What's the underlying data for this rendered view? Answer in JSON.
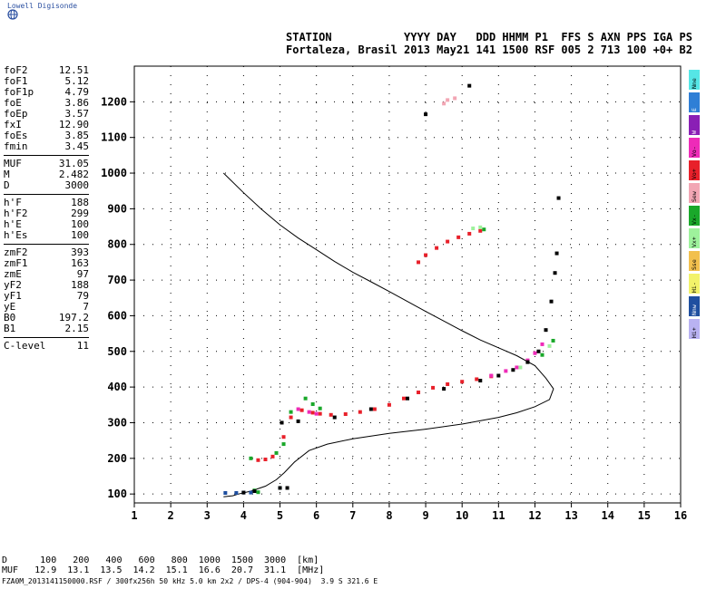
{
  "header": {
    "logo_text": "Lowell Digisonde",
    "station_line1": "STATION           YYYY DAY   DDD HHMM P1  FFS S AXN PPS IGA PS",
    "station_line2": "Fortaleza, Brasil 2013 May21 141 1500 RSF 005 2 713 100 +0+ B2"
  },
  "params": {
    "group1": [
      {
        "label": "foF2",
        "value": "12.51"
      },
      {
        "label": "foF1",
        "value": "5.12"
      },
      {
        "label": "foF1p",
        "value": "4.79"
      },
      {
        "label": "foE",
        "value": "3.86"
      },
      {
        "label": "foEp",
        "value": "3.57"
      },
      {
        "label": "fxI",
        "value": "12.90"
      },
      {
        "label": "foEs",
        "value": "3.85"
      },
      {
        "label": "fmin",
        "value": "3.45"
      }
    ],
    "group2": [
      {
        "label": "MUF",
        "value": "31.05"
      },
      {
        "label": "M",
        "value": "2.482"
      },
      {
        "label": "D",
        "value": "3000"
      }
    ],
    "group3": [
      {
        "label": "h'F",
        "value": "188"
      },
      {
        "label": "h'F2",
        "value": "299"
      },
      {
        "label": "h'E",
        "value": "100"
      },
      {
        "label": "h'Es",
        "value": "100"
      }
    ],
    "group4": [
      {
        "label": "zmF2",
        "value": "393"
      },
      {
        "label": "zmF1",
        "value": "163"
      },
      {
        "label": "zmE",
        "value": "97"
      },
      {
        "label": "yF2",
        "value": "188"
      },
      {
        "label": "yF1",
        "value": "79"
      },
      {
        "label": "yE",
        "value": "7"
      },
      {
        "label": "B0",
        "value": "197.2"
      },
      {
        "label": "B1",
        "value": "2.15"
      }
    ],
    "group5": [
      {
        "label": "C-level",
        "value": "11"
      }
    ]
  },
  "legend": [
    {
      "label": "Nne",
      "color": "#55e6e6"
    },
    {
      "label": "E",
      "color": "#2f7fd6"
    },
    {
      "label": "W",
      "color": "#8a1fb5"
    },
    {
      "label": "Vo-",
      "color": "#ee2bb8"
    },
    {
      "label": "Vo+",
      "color": "#e8202a"
    },
    {
      "label": "Sew",
      "color": "#f2a6b4"
    },
    {
      "label": "Vx-",
      "color": "#1aa82a"
    },
    {
      "label": "Vx+",
      "color": "#9ef29c"
    },
    {
      "label": "Sse",
      "color": "#f2c04e"
    },
    {
      "label": "Hi-",
      "color": "#f2f26a"
    },
    {
      "label": "Nnw",
      "color": "#1f4fa0"
    },
    {
      "label": "Hi+",
      "color": "#b9b2f2"
    }
  ],
  "muf_table": {
    "d_label": "D",
    "d_values": [
      "100",
      "200",
      "400",
      "600",
      "800",
      "1000",
      "1500",
      "3000"
    ],
    "d_unit": "[km]",
    "muf_label": "MUF",
    "muf_values": [
      "12.9",
      "13.1",
      "13.5",
      "14.2",
      "15.1",
      "16.6",
      "20.7",
      "31.1"
    ],
    "muf_unit": "[MHz]"
  },
  "footer": "FZA0M_2013141150000.RSF / 300fx256h 50 kHz 5.0 km 2x2 / DPS-4 (904-904)  3.9 S 321.6 E",
  "chart_data": {
    "type": "scatter",
    "title": "",
    "xlabel": "",
    "ylabel": "",
    "xlim": [
      1,
      16
    ],
    "ylim": [
      75,
      1300
    ],
    "xticks": [
      1,
      2,
      3,
      4,
      5,
      6,
      7,
      8,
      9,
      10,
      11,
      12,
      13,
      14,
      15,
      16
    ],
    "yticks": [
      100,
      200,
      300,
      400,
      500,
      600,
      700,
      800,
      900,
      1000,
      1100,
      1200
    ],
    "grid": true,
    "series": [
      {
        "color": "#e8202a",
        "points": [
          [
            6.1,
            325
          ],
          [
            6.4,
            322
          ],
          [
            6.8,
            324
          ],
          [
            7.2,
            330
          ],
          [
            7.6,
            338
          ],
          [
            8.0,
            350
          ],
          [
            8.4,
            368
          ],
          [
            8.8,
            385
          ],
          [
            9.2,
            398
          ],
          [
            9.6,
            408
          ],
          [
            10.0,
            415
          ],
          [
            10.4,
            422
          ],
          [
            10.8,
            430
          ]
        ]
      },
      {
        "color": "#e8202a",
        "points": [
          [
            8.8,
            750
          ],
          [
            9.0,
            770
          ],
          [
            9.3,
            790
          ],
          [
            9.6,
            808
          ],
          [
            9.9,
            820
          ],
          [
            10.2,
            830
          ],
          [
            10.5,
            838
          ]
        ]
      },
      {
        "color": "#e8202a",
        "points": [
          [
            4.4,
            195
          ],
          [
            4.6,
            197
          ],
          [
            4.8,
            205
          ],
          [
            5.1,
            260
          ],
          [
            5.3,
            315
          ],
          [
            5.6,
            335
          ],
          [
            5.9,
            328
          ]
        ]
      },
      {
        "color": "#ee2bb8",
        "points": [
          [
            5.5,
            338
          ],
          [
            5.8,
            330
          ],
          [
            6.0,
            325
          ],
          [
            10.8,
            432
          ],
          [
            11.2,
            445
          ],
          [
            11.5,
            455
          ],
          [
            11.8,
            475
          ],
          [
            12.0,
            495
          ],
          [
            12.2,
            520
          ]
        ]
      },
      {
        "color": "#1aa82a",
        "points": [
          [
            4.3,
            110
          ],
          [
            4.4,
            105
          ],
          [
            4.2,
            200
          ],
          [
            4.9,
            215
          ],
          [
            5.1,
            240
          ],
          [
            5.3,
            330
          ],
          [
            5.7,
            368
          ],
          [
            5.9,
            352
          ],
          [
            6.1,
            340
          ],
          [
            10.6,
            842
          ],
          [
            11.8,
            470
          ],
          [
            12.2,
            490
          ],
          [
            12.5,
            530
          ]
        ]
      },
      {
        "color": "#9ef29c",
        "points": [
          [
            10.3,
            845
          ],
          [
            10.5,
            848
          ],
          [
            11.6,
            455
          ],
          [
            12.4,
            515
          ]
        ]
      },
      {
        "color": "#1f4fa0",
        "points": [
          [
            3.5,
            103
          ],
          [
            3.8,
            103
          ],
          [
            4.0,
            104
          ],
          [
            4.2,
            104
          ]
        ]
      },
      {
        "color": "#55e6e6",
        "points": [
          [
            5.0,
            117
          ]
        ]
      },
      {
        "color": "#000000",
        "points": [
          [
            4.0,
            104
          ],
          [
            4.3,
            108
          ],
          [
            5.0,
            117
          ],
          [
            5.2,
            117
          ],
          [
            5.05,
            300
          ],
          [
            5.5,
            304
          ],
          [
            6.5,
            315
          ],
          [
            7.5,
            338
          ],
          [
            8.5,
            368
          ],
          [
            9.5,
            395
          ],
          [
            10.5,
            418
          ],
          [
            11.0,
            432
          ],
          [
            11.4,
            448
          ],
          [
            11.8,
            470
          ],
          [
            12.1,
            500
          ],
          [
            12.3,
            560
          ],
          [
            12.45,
            640
          ],
          [
            12.55,
            720
          ],
          [
            12.6,
            775
          ],
          [
            12.65,
            930
          ],
          [
            10.2,
            1245
          ],
          [
            9.0,
            1165
          ]
        ]
      },
      {
        "color": "#f2a6b4",
        "points": [
          [
            9.6,
            1205
          ],
          [
            9.8,
            1210
          ],
          [
            9.5,
            1195
          ]
        ]
      }
    ],
    "profile_line": {
      "color": "#000000",
      "points": [
        [
          3.45,
          1000
        ],
        [
          4.0,
          945
        ],
        [
          4.5,
          898
        ],
        [
          5.0,
          855
        ],
        [
          5.5,
          818
        ],
        [
          6.0,
          785
        ],
        [
          6.5,
          752
        ],
        [
          7.0,
          722
        ],
        [
          7.5,
          695
        ],
        [
          8.0,
          668
        ],
        [
          8.5,
          640
        ],
        [
          9.0,
          612
        ],
        [
          9.5,
          585
        ],
        [
          10.0,
          558
        ],
        [
          10.5,
          532
        ],
        [
          11.0,
          510
        ],
        [
          11.5,
          488
        ],
        [
          12.0,
          460
        ],
        [
          12.3,
          425
        ],
        [
          12.51,
          395
        ],
        [
          12.4,
          365
        ],
        [
          12.0,
          345
        ],
        [
          11.5,
          328
        ],
        [
          11.0,
          315
        ],
        [
          10.0,
          296
        ],
        [
          9.0,
          282
        ],
        [
          8.0,
          270
        ],
        [
          7.0,
          255
        ],
        [
          6.3,
          240
        ],
        [
          5.8,
          222
        ],
        [
          5.4,
          190
        ],
        [
          5.12,
          160
        ],
        [
          4.9,
          140
        ],
        [
          4.6,
          122
        ],
        [
          4.2,
          108
        ],
        [
          3.86,
          100
        ],
        [
          3.7,
          95
        ],
        [
          3.45,
          92
        ]
      ]
    }
  }
}
